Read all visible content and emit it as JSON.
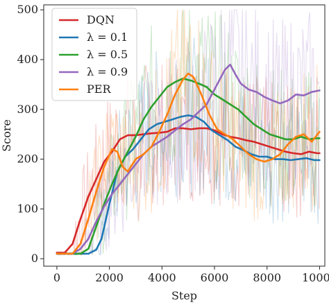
{
  "chart_data": {
    "type": "line",
    "xlabel": "Step",
    "ylabel": "Score",
    "xlim": [
      -500,
      10200
    ],
    "ylim": [
      -15,
      510
    ],
    "xticks": [
      0,
      2000,
      4000,
      6000,
      8000,
      10000
    ],
    "yticks": [
      0,
      100,
      200,
      300,
      400,
      500
    ],
    "xtick_labels": [
      "0",
      "2000",
      "4000",
      "6000",
      "8000",
      "10000"
    ],
    "ytick_labels": [
      "0",
      "100",
      "200",
      "300",
      "400",
      "500"
    ],
    "legend_position": "top-left",
    "grid": false,
    "raw_noise_shown": true,
    "series": [
      {
        "name": "DQN",
        "color": "#d62728",
        "x": [
          0,
          300,
          600,
          900,
          1200,
          1500,
          1800,
          2100,
          2400,
          2700,
          3000,
          3300,
          3600,
          3900,
          4200,
          4500,
          4800,
          5100,
          5400,
          5700,
          6000,
          6300,
          6600,
          6900,
          7200,
          7500,
          7800,
          8100,
          8400,
          8700,
          9000,
          9300,
          9600,
          9900,
          10000
        ],
        "y": [
          12,
          12,
          30,
          80,
          125,
          160,
          195,
          215,
          240,
          248,
          248,
          250,
          252,
          253,
          255,
          262,
          262,
          260,
          262,
          262,
          258,
          250,
          245,
          242,
          238,
          235,
          230,
          225,
          220,
          215,
          212,
          210,
          215,
          212,
          212
        ]
      },
      {
        "name": "λ = 0.1",
        "color": "#1f77b4",
        "x": [
          0,
          300,
          600,
          900,
          1200,
          1500,
          1700,
          2000,
          2300,
          2600,
          2900,
          3200,
          3500,
          3800,
          4100,
          4400,
          4700,
          5000,
          5300,
          5600,
          5900,
          6200,
          6500,
          6800,
          7100,
          7400,
          7700,
          8000,
          8300,
          8600,
          8900,
          9200,
          9500,
          9800,
          10000
        ],
        "y": [
          10,
          10,
          10,
          10,
          10,
          18,
          40,
          110,
          175,
          205,
          220,
          240,
          260,
          270,
          275,
          280,
          285,
          288,
          285,
          275,
          258,
          248,
          238,
          225,
          218,
          210,
          205,
          205,
          200,
          200,
          198,
          200,
          202,
          198,
          198
        ]
      },
      {
        "name": "λ = 0.5",
        "color": "#2ca02c",
        "x": [
          0,
          300,
          600,
          900,
          1200,
          1500,
          1800,
          2100,
          2400,
          2700,
          3000,
          3300,
          3600,
          3900,
          4200,
          4500,
          4800,
          5100,
          5400,
          5700,
          6000,
          6300,
          6600,
          6900,
          7200,
          7500,
          7800,
          8100,
          8400,
          8700,
          9000,
          9300,
          9600,
          9900,
          10000
        ],
        "y": [
          10,
          10,
          10,
          10,
          20,
          65,
          110,
          150,
          185,
          215,
          245,
          280,
          305,
          325,
          345,
          355,
          362,
          358,
          352,
          345,
          330,
          320,
          310,
          300,
          285,
          270,
          260,
          250,
          245,
          240,
          240,
          245,
          240,
          242,
          242
        ]
      },
      {
        "name": "λ = 0.9",
        "color": "#9467bd",
        "x": [
          0,
          300,
          600,
          900,
          1200,
          1500,
          1800,
          2100,
          2400,
          2700,
          3000,
          3300,
          3600,
          3900,
          4200,
          4500,
          4800,
          5100,
          5400,
          5700,
          6000,
          6200,
          6400,
          6600,
          6800,
          7000,
          7300,
          7600,
          7900,
          8200,
          8500,
          8800,
          9100,
          9400,
          9700,
          10000
        ],
        "y": [
          10,
          10,
          10,
          20,
          40,
          75,
          105,
          130,
          150,
          170,
          190,
          210,
          225,
          235,
          245,
          258,
          270,
          280,
          295,
          310,
          340,
          360,
          380,
          390,
          370,
          352,
          340,
          335,
          325,
          318,
          312,
          318,
          330,
          328,
          335,
          338
        ]
      },
      {
        "name": "PER",
        "color": "#ff7f0e",
        "x": [
          0,
          300,
          600,
          900,
          1200,
          1500,
          1800,
          2100,
          2300,
          2500,
          2700,
          3000,
          3300,
          3600,
          3900,
          4200,
          4500,
          4800,
          5000,
          5200,
          5500,
          5800,
          6100,
          6400,
          6700,
          7000,
          7300,
          7600,
          7900,
          8200,
          8500,
          8800,
          9100,
          9400,
          9700,
          10000
        ],
        "y": [
          10,
          10,
          10,
          30,
          80,
          135,
          185,
          220,
          215,
          185,
          175,
          200,
          210,
          225,
          255,
          290,
          330,
          360,
          372,
          365,
          330,
          290,
          260,
          250,
          240,
          225,
          210,
          200,
          195,
          200,
          210,
          230,
          245,
          250,
          235,
          255
        ]
      }
    ]
  }
}
